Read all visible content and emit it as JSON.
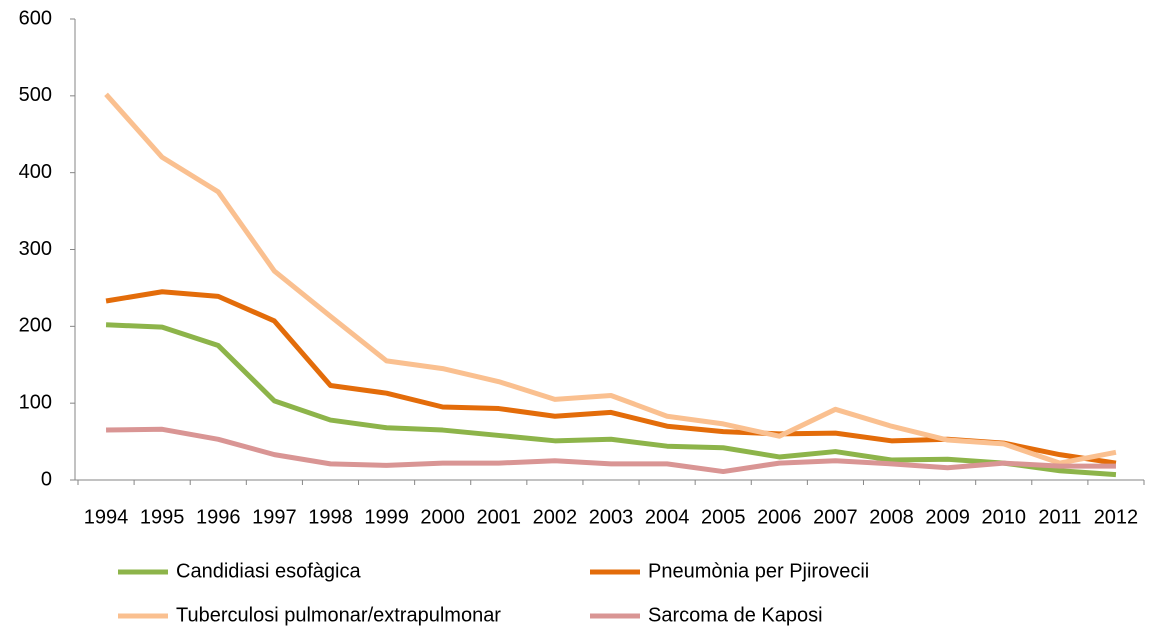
{
  "chart_data": {
    "type": "line",
    "categories": [
      "1994",
      "1995",
      "1996",
      "1997",
      "1998",
      "1999",
      "2000",
      "2001",
      "2002",
      "2003",
      "2004",
      "2005",
      "2006",
      "2007",
      "2008",
      "2009",
      "2010",
      "2011",
      "2012"
    ],
    "series": [
      {
        "name": "Candidiasi esofàgica",
        "color": "#8db44a",
        "values": [
          202,
          199,
          175,
          103,
          78,
          68,
          65,
          58,
          51,
          53,
          44,
          42,
          30,
          37,
          26,
          27,
          22,
          12,
          7
        ]
      },
      {
        "name": "Pneumònia per Pjirovecii",
        "color": "#e36c0a",
        "values": [
          233,
          245,
          239,
          207,
          123,
          113,
          95,
          93,
          83,
          88,
          70,
          63,
          60,
          61,
          51,
          53,
          48,
          33,
          22
        ]
      },
      {
        "name": "Tuberculosi pulmonar/extrapulmonar",
        "color": "#fac090",
        "values": [
          502,
          420,
          375,
          272,
          213,
          155,
          145,
          128,
          105,
          110,
          83,
          73,
          57,
          92,
          70,
          52,
          47,
          22,
          36
        ]
      },
      {
        "name": "Sarcoma de Kaposi",
        "color": "#d99594",
        "values": [
          65,
          66,
          53,
          33,
          21,
          19,
          22,
          22,
          25,
          21,
          21,
          11,
          22,
          25,
          21,
          16,
          22,
          18,
          18
        ]
      }
    ],
    "ylim": [
      0,
      600
    ],
    "yticks": [
      0,
      100,
      200,
      300,
      400,
      500,
      600
    ],
    "grid": false
  }
}
